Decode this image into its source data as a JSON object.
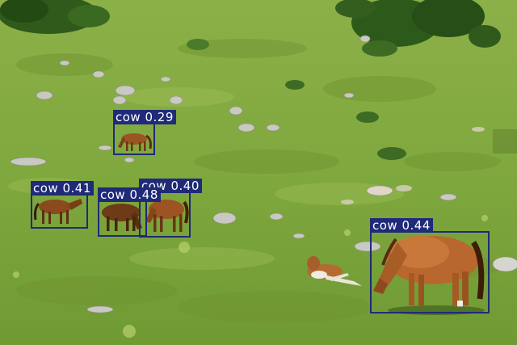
{
  "image": {
    "subject": "Horses grazing on a green alpine meadow with rocks and bushes, overlaid with object-detection boxes",
    "colors": {
      "box": "#1f2a78",
      "label_text": "#ffffff",
      "grass": "#7fa640"
    }
  },
  "detections": [
    {
      "id": "det-1",
      "label": "cow 0.29"
    },
    {
      "id": "det-2",
      "label": "cow 0.41"
    },
    {
      "id": "det-3",
      "label": "cow 0.48"
    },
    {
      "id": "det-4",
      "label": "cow 0.40"
    },
    {
      "id": "det-5",
      "label": "cow 0.44"
    }
  ]
}
